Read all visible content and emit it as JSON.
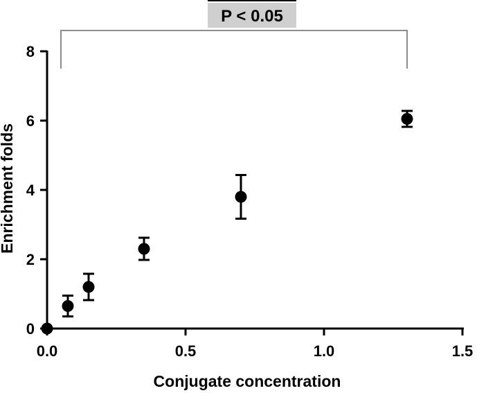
{
  "chart_data": {
    "type": "scatter",
    "title": "",
    "xlabel": "Conjugate concentration",
    "ylabel": "Enrichment folds",
    "xlim": [
      0,
      1.5
    ],
    "ylim": [
      0,
      8
    ],
    "xticks": [
      0,
      0.5,
      1.0,
      1.5
    ],
    "xtick_labels": [
      "0.0",
      "0.5",
      "1.0",
      "1.5"
    ],
    "yticks": [
      0,
      2,
      4,
      6,
      8
    ],
    "ytick_labels": [
      "0",
      "2",
      "4",
      "6",
      "8"
    ],
    "grid": false,
    "series": [
      {
        "points": [
          {
            "x": 0.0,
            "y": 0.0,
            "err": 0
          },
          {
            "x": 0.075,
            "y": 0.65,
            "err": 0.3
          },
          {
            "x": 0.15,
            "y": 1.2,
            "err": 0.38
          },
          {
            "x": 0.35,
            "y": 2.3,
            "err": 0.32
          },
          {
            "x": 0.7,
            "y": 3.8,
            "err": 0.63
          },
          {
            "x": 1.3,
            "y": 6.05,
            "err": 0.23
          }
        ]
      }
    ],
    "annotation": {
      "text": "P < 0.05",
      "x_from": 0.05,
      "x_to": 1.3,
      "y_level": 8.0,
      "drop_to": 7.7
    },
    "colors": {
      "marker": "#000000",
      "bracket": "#8c8c8c",
      "label_bg": "#cfcfcf"
    }
  }
}
